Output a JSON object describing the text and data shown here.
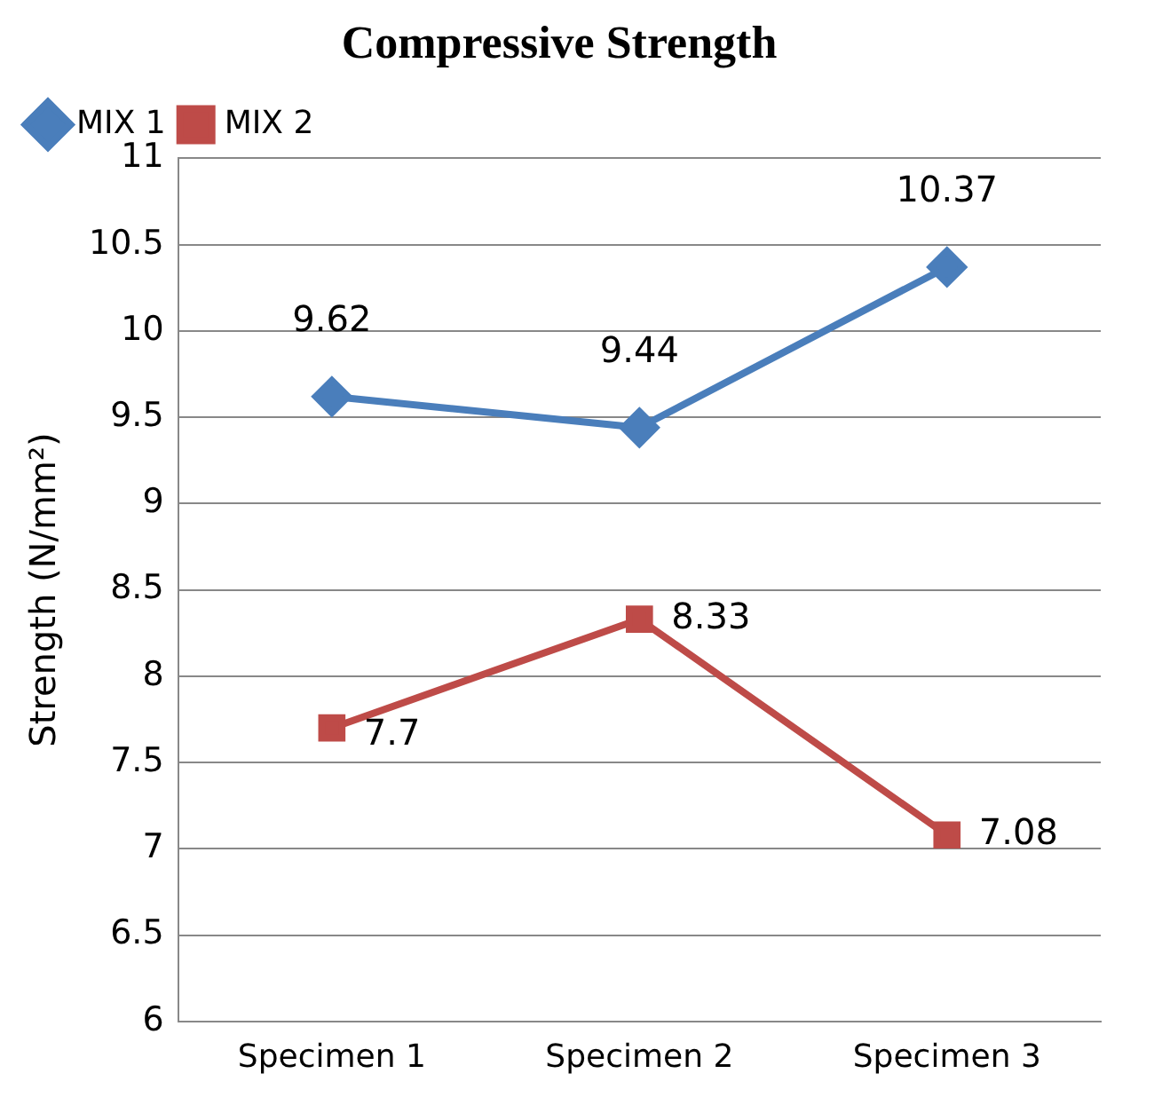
{
  "chart_data": {
    "type": "line",
    "title": "Compressive Strength",
    "ylabel": "Strength (N/mm²)",
    "categories": [
      "Specimen 1",
      "Specimen 2",
      "Specimen 3"
    ],
    "series": [
      {
        "name": "MIX 1",
        "color": "#4a7ebb",
        "values": [
          9.62,
          9.44,
          10.37
        ],
        "marker": "diamond"
      },
      {
        "name": "MIX 2",
        "color": "#be4b48",
        "values": [
          7.7,
          8.33,
          7.08
        ],
        "marker": "square"
      }
    ],
    "ylim": [
      6,
      11
    ],
    "yticks": [
      6,
      6.5,
      7,
      7.5,
      8,
      8.5,
      9,
      9.5,
      10,
      10.5,
      11
    ],
    "grid": "y",
    "legend": "top left",
    "data_labels": true
  }
}
